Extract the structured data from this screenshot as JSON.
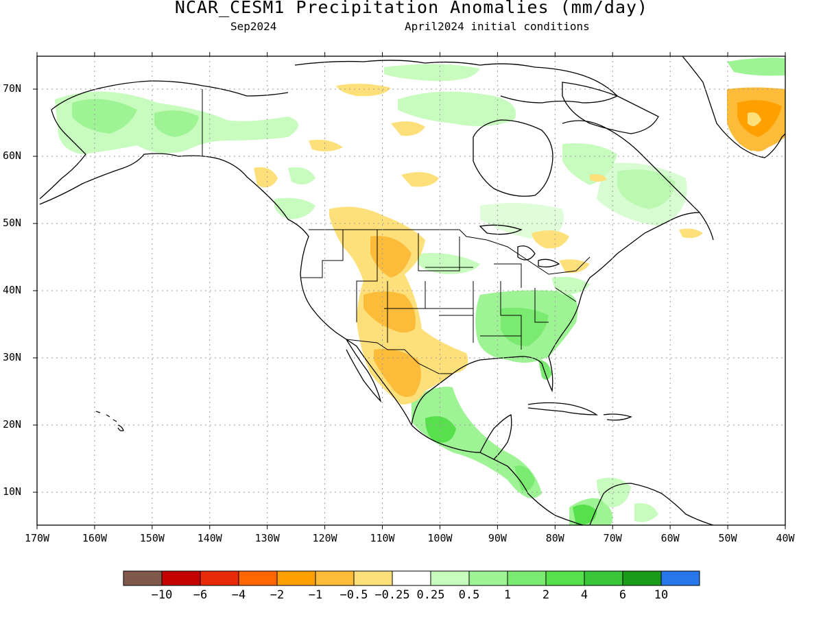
{
  "title": "NCAR_CESM1 Precipitation Anomalies (mm/day)",
  "subtitle_left": "Sep2024",
  "subtitle_right": "April2024 initial conditions",
  "lat_labels": [
    "70N",
    "60N",
    "50N",
    "40N",
    "30N",
    "20N",
    "10N"
  ],
  "lon_labels": [
    "170W",
    "160W",
    "150W",
    "140W",
    "130W",
    "120W",
    "110W",
    "100W",
    "90W",
    "80W",
    "70W",
    "60W",
    "50W",
    "40W"
  ],
  "colorbar": {
    "colors": [
      "#7f5a4a",
      "#c40000",
      "#e62a0a",
      "#ff6600",
      "#ffa000",
      "#fcbc3a",
      "#fee07a",
      "#ffffff",
      "#c8fbbe",
      "#9ef494",
      "#7aeb70",
      "#56e04c",
      "#3ac63a",
      "#1a9c1a",
      "#2876ea"
    ],
    "labels": [
      "−10",
      "−6",
      "−4",
      "−2",
      "−1",
      "−0.5",
      "−0.25",
      "0.25",
      "0.5",
      "1",
      "2",
      "4",
      "6",
      "10"
    ]
  },
  "palette": {
    "dry_light": "#fee07a",
    "dry_mid": "#fcbc3a",
    "dry_strong": "#ffa000",
    "wet_light": "#c8fbbe",
    "wet_mid": "#9ef494",
    "wet_strong": "#56e04c"
  }
}
